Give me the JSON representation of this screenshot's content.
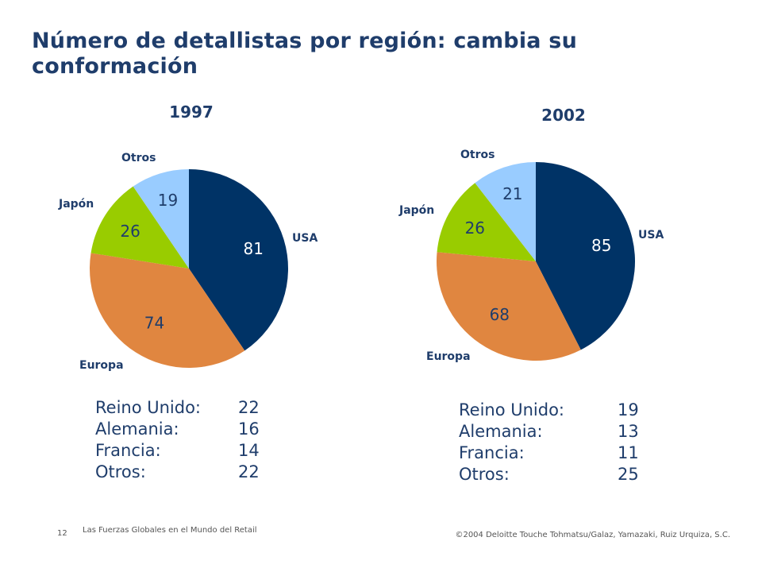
{
  "title": "Número de detallistas por región: cambia su conformación",
  "colors": {
    "usa": "#003366",
    "europa": "#e08640",
    "japon": "#99cc00",
    "otros": "#99ccff",
    "text_dark": "#1f3d6b"
  },
  "chart_data": [
    {
      "type": "pie",
      "title": "1997",
      "slices": [
        {
          "label": "USA",
          "value": 81
        },
        {
          "label": "Europa",
          "value": 74
        },
        {
          "label": "Japón",
          "value": 26
        },
        {
          "label": "Otros",
          "value": 19
        }
      ]
    },
    {
      "type": "pie",
      "title": "2002",
      "slices": [
        {
          "label": "USA",
          "value": 85
        },
        {
          "label": "Europa",
          "value": 68
        },
        {
          "label": "Japón",
          "value": 26
        },
        {
          "label": "Otros",
          "value": 21
        }
      ]
    }
  ],
  "breakdowns": [
    {
      "rows": [
        {
          "label": "Reino Unido:",
          "value": "22"
        },
        {
          "label": "Alemania:",
          "value": "16"
        },
        {
          "label": "Francia:",
          "value": "14"
        },
        {
          "label": "Otros:",
          "value": "22"
        }
      ]
    },
    {
      "rows": [
        {
          "label": "Reino Unido:",
          "value": "19"
        },
        {
          "label": "Alemania:",
          "value": "13"
        },
        {
          "label": "Francia:",
          "value": "11"
        },
        {
          "label": "Otros:",
          "value": "25"
        }
      ]
    }
  ],
  "footer": {
    "page": "12",
    "presentation": "Las Fuerzas Globales en el Mundo del Retail",
    "copyright": "©2004 Deloitte Touche Tohmatsu/Galaz, Yamazaki, Ruiz Urquiza, S.C."
  }
}
